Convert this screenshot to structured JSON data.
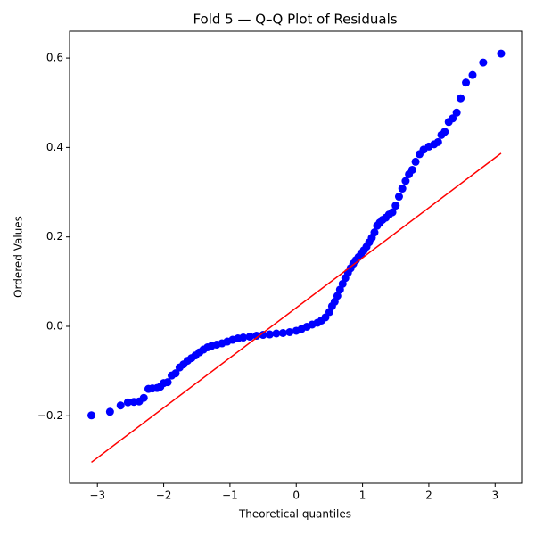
{
  "chart_data": {
    "type": "scatter",
    "title": "Fold 5 — Q–Q Plot of Residuals",
    "xlabel": "Theoretical quantiles",
    "ylabel": "Ordered Values",
    "color": "#0000ff",
    "x": [
      -3.09,
      -2.81,
      -2.65,
      -2.54,
      -2.45,
      -2.37,
      -2.3,
      -2.23,
      -2.17,
      -2.1,
      -2.05,
      -2.0,
      -1.94,
      -1.88,
      -1.82,
      -1.76,
      -1.7,
      -1.64,
      -1.58,
      -1.52,
      -1.46,
      -1.4,
      -1.34,
      -1.28,
      -1.2,
      -1.12,
      -1.04,
      -0.96,
      -0.88,
      -0.8,
      -0.7,
      -0.6,
      -0.5,
      -0.4,
      -0.3,
      -0.2,
      -0.1,
      0.0,
      0.08,
      0.16,
      0.24,
      0.32,
      0.38,
      0.44,
      0.5,
      0.54,
      0.58,
      0.62,
      0.66,
      0.7,
      0.74,
      0.78,
      0.82,
      0.86,
      0.9,
      0.94,
      0.98,
      1.02,
      1.06,
      1.1,
      1.14,
      1.18,
      1.22,
      1.26,
      1.3,
      1.35,
      1.4,
      1.45,
      1.5,
      1.55,
      1.6,
      1.65,
      1.7,
      1.75,
      1.8,
      1.86,
      1.92,
      2.0,
      2.08,
      2.14,
      2.19,
      2.24,
      2.3,
      2.36,
      2.42,
      2.48,
      2.56,
      2.66,
      2.82,
      3.09
    ],
    "values": [
      -0.199,
      -0.191,
      -0.177,
      -0.17,
      -0.169,
      -0.168,
      -0.16,
      -0.14,
      -0.139,
      -0.138,
      -0.135,
      -0.127,
      -0.125,
      -0.11,
      -0.105,
      -0.092,
      -0.085,
      -0.077,
      -0.071,
      -0.065,
      -0.058,
      -0.052,
      -0.047,
      -0.044,
      -0.041,
      -0.038,
      -0.034,
      -0.03,
      -0.027,
      -0.025,
      -0.023,
      -0.021,
      -0.019,
      -0.018,
      -0.016,
      -0.015,
      -0.013,
      -0.01,
      -0.006,
      -0.001,
      0.004,
      0.008,
      0.013,
      0.02,
      0.032,
      0.045,
      0.055,
      0.068,
      0.082,
      0.095,
      0.108,
      0.12,
      0.13,
      0.14,
      0.148,
      0.155,
      0.163,
      0.17,
      0.178,
      0.188,
      0.198,
      0.21,
      0.225,
      0.232,
      0.238,
      0.243,
      0.25,
      0.255,
      0.27,
      0.29,
      0.308,
      0.325,
      0.34,
      0.35,
      0.368,
      0.385,
      0.395,
      0.402,
      0.407,
      0.412,
      0.428,
      0.435,
      0.457,
      0.465,
      0.478,
      0.51,
      0.545,
      0.562,
      0.59,
      0.61
    ],
    "fit_line": {
      "x": [
        -3.09,
        3.09
      ],
      "y": [
        -0.304,
        0.387
      ],
      "color": "#ff0000"
    },
    "xlim": [
      -3.42,
      3.4
    ],
    "ylim": [
      -0.351,
      0.66
    ],
    "xticks": [
      {
        "value": -3,
        "label": "−3"
      },
      {
        "value": -2,
        "label": "−2"
      },
      {
        "value": -1,
        "label": "−1"
      },
      0,
      1,
      2,
      3
    ],
    "yticks": [
      {
        "value": -0.2,
        "label": "−0.2"
      },
      {
        "value": 0,
        "label": "0.0"
      },
      {
        "value": 0.2,
        "label": "0.2"
      },
      {
        "value": 0.4,
        "label": "0.4"
      },
      {
        "value": 0.6,
        "label": "0.6"
      }
    ]
  }
}
